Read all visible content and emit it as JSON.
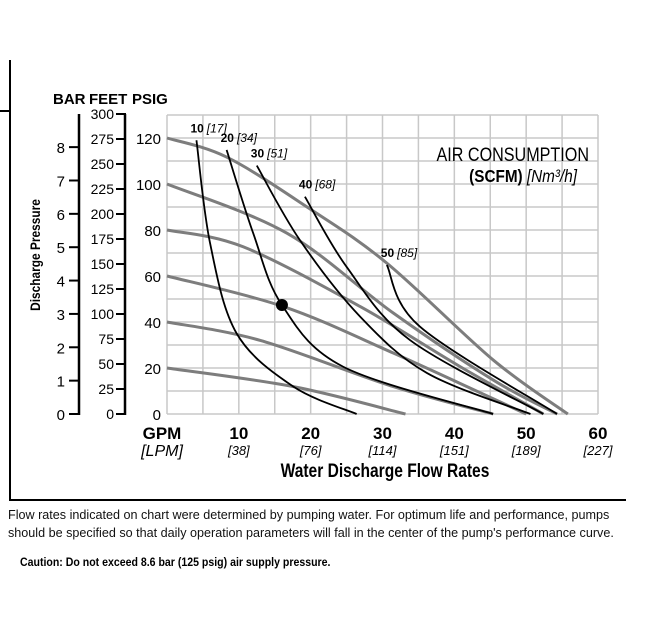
{
  "chart_data": {
    "type": "line",
    "title": "",
    "legend_title": {
      "line1": "AIR CONSUMPTION",
      "bold": "(SCFM)",
      "italic": "[Nm³/h]"
    },
    "xlabel": "Water Discharge Flow Rates",
    "x_unit_primary": "GPM",
    "x_unit_secondary": "[LPM]",
    "xlim": [
      0,
      60
    ],
    "x_ticks": [
      {
        "gpm": "10",
        "lpm": "[38]"
      },
      {
        "gpm": "20",
        "lpm": "[76]"
      },
      {
        "gpm": "30",
        "lpm": "[114]"
      },
      {
        "gpm": "40",
        "lpm": "[151]"
      },
      {
        "gpm": "50",
        "lpm": "[189]"
      },
      {
        "gpm": "60",
        "lpm": "[227]"
      }
    ],
    "ylabel": "Discharge Pressure",
    "ylim": [
      0,
      130
    ],
    "y_axes_header": {
      "bar": "BAR",
      "feet": "FEET",
      "psig": "PSIG"
    },
    "psig_ticks": [
      "0",
      "20",
      "40",
      "60",
      "80",
      "100",
      "120"
    ],
    "feet_ticks": [
      "0",
      "25",
      "50",
      "75",
      "100",
      "125",
      "150",
      "175",
      "200",
      "225",
      "250",
      "275",
      "300"
    ],
    "bar_ticks": [
      "0",
      "1",
      "2",
      "3",
      "4",
      "5",
      "6",
      "7",
      "8"
    ],
    "grid": true,
    "grid_color": "#c8c8c8",
    "pressure_curve_color": "#7d7d7d",
    "air_curve_color": "#000000",
    "pressure_curves": [
      {
        "supply_psig": 120,
        "points": [
          [
            0,
            120
          ],
          [
            8.3,
            111.7
          ],
          [
            19.5,
            90
          ],
          [
            30.6,
            65.6
          ],
          [
            45.4,
            23.5
          ],
          [
            55.8,
            0
          ]
        ]
      },
      {
        "supply_psig": 100,
        "points": [
          [
            0,
            100
          ],
          [
            16.7,
            78.6
          ],
          [
            31.5,
            43.9
          ],
          [
            45.4,
            14.8
          ],
          [
            54.3,
            0
          ]
        ]
      },
      {
        "supply_psig": 80,
        "points": [
          [
            0,
            80
          ],
          [
            10.6,
            72.7
          ],
          [
            26.9,
            46.7
          ],
          [
            40.8,
            20.6
          ],
          [
            52.4,
            0
          ]
        ]
      },
      {
        "supply_psig": 60,
        "points": [
          [
            0,
            60
          ],
          [
            16.2,
            46.7
          ],
          [
            31.5,
            26.5
          ],
          [
            50,
            0
          ]
        ]
      },
      {
        "supply_psig": 40,
        "points": [
          [
            0,
            40
          ],
          [
            13,
            32
          ],
          [
            31.5,
            11.9
          ],
          [
            45.4,
            0
          ]
        ]
      },
      {
        "supply_psig": 20,
        "points": [
          [
            0,
            20
          ],
          [
            17.6,
            11.9
          ],
          [
            33.2,
            0
          ]
        ]
      }
    ],
    "air_curves": [
      {
        "label": "10",
        "metric": "[17]",
        "points": [
          [
            4.1,
            119
          ],
          [
            6,
            74.2
          ],
          [
            9.7,
            35
          ],
          [
            17.6,
            11.9
          ],
          [
            26.4,
            0
          ]
        ]
      },
      {
        "label": "20",
        "metric": "[34]",
        "points": [
          [
            8.3,
            114.8
          ],
          [
            12,
            78.6
          ],
          [
            16,
            47.4
          ],
          [
            24.5,
            20.6
          ],
          [
            45.4,
            0
          ]
        ]
      },
      {
        "label": "30",
        "metric": "[51]",
        "points": [
          [
            12.5,
            108
          ],
          [
            18.5,
            75.6
          ],
          [
            26.9,
            42.3
          ],
          [
            36.2,
            17.8
          ],
          [
            50.6,
            0
          ]
        ]
      },
      {
        "label": "40",
        "metric": "[68]",
        "points": [
          [
            19.2,
            94.5
          ],
          [
            25,
            64
          ],
          [
            33.8,
            32.2
          ],
          [
            52.4,
            0
          ]
        ]
      },
      {
        "label": "50",
        "metric": "[85]",
        "points": [
          [
            30.6,
            64.8
          ],
          [
            35.2,
            38
          ],
          [
            54.3,
            0
          ]
        ]
      }
    ],
    "marker_point": [
      16,
      47.4
    ]
  },
  "footnote": "Flow rates indicated on chart were determined by pumping water. For optimum life and performance, pumps should be specified so that daily operation parameters will fall in the center of the pump's performance curve.",
  "caution": "Caution: Do not exceed 8.6 bar (125 psig) air supply pressure."
}
